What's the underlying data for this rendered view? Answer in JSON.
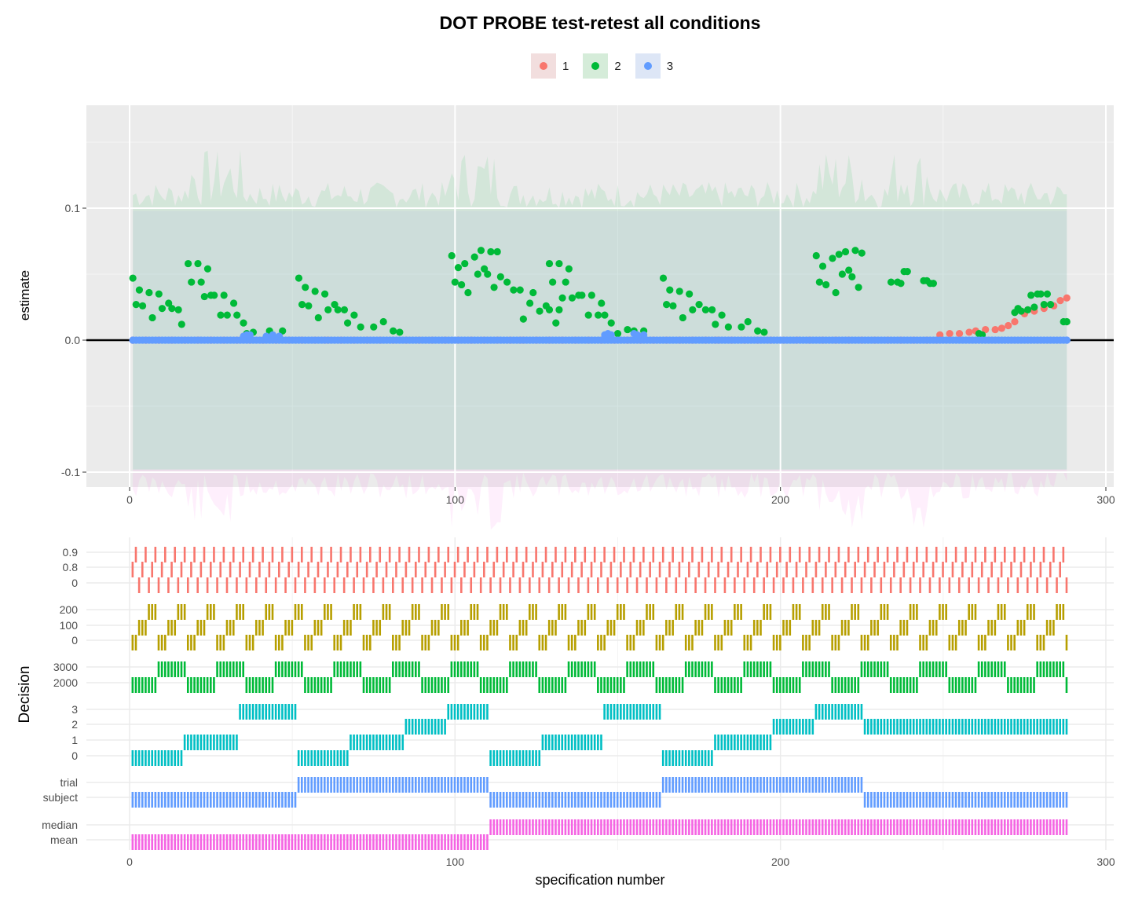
{
  "chart_data": [
    {
      "type": "scatter",
      "title": "DOT PROBE test-retest all conditions",
      "xlabel": "",
      "ylabel": "estimate",
      "xlim": [
        -13,
        304
      ],
      "ylim": [
        -0.113,
        0.178
      ],
      "x_ticks": [
        "0",
        "100",
        "200",
        "300"
      ],
      "y_ticks": [
        "-0.1",
        "0.0",
        "0.1"
      ],
      "y_tick_values": [
        -0.1,
        0.0,
        0.1
      ],
      "grid": true,
      "legend_position": "top",
      "hline_y": 0,
      "confidence_band": [
        -0.098,
        0.098
      ],
      "series": [
        {
          "name": "1",
          "color": "#F8766D",
          "points": [
            [
              1,
              0.0
            ],
            [
              60,
              0.0
            ],
            [
              120,
              0.0
            ],
            [
              180,
              0.0
            ],
            [
              248,
              0.0
            ],
            [
              249,
              0.004
            ],
            [
              252,
              0.005
            ],
            [
              255,
              0.005
            ],
            [
              258,
              0.006
            ],
            [
              260,
              0.007
            ],
            [
              263,
              0.008
            ],
            [
              266,
              0.008
            ],
            [
              268,
              0.009
            ],
            [
              270,
              0.011
            ],
            [
              272,
              0.014
            ],
            [
              275,
              0.02
            ],
            [
              278,
              0.022
            ],
            [
              281,
              0.024
            ],
            [
              284,
              0.026
            ],
            [
              286,
              0.03
            ],
            [
              288,
              0.032
            ]
          ]
        },
        {
          "name": "2",
          "color": "#00BA38",
          "points": [
            [
              1,
              0.047
            ],
            [
              2,
              0.027
            ],
            [
              3,
              0.038
            ],
            [
              4,
              0.026
            ],
            [
              6,
              0.036
            ],
            [
              7,
              0.017
            ],
            [
              9,
              0.035
            ],
            [
              10,
              0.024
            ],
            [
              12,
              0.028
            ],
            [
              13,
              0.024
            ],
            [
              15,
              0.023
            ],
            [
              16,
              0.012
            ],
            [
              18,
              0.058
            ],
            [
              19,
              0.044
            ],
            [
              21,
              0.058
            ],
            [
              22,
              0.044
            ],
            [
              23,
              0.033
            ],
            [
              24,
              0.054
            ],
            [
              25,
              0.034
            ],
            [
              26,
              0.034
            ],
            [
              28,
              0.019
            ],
            [
              29,
              0.034
            ],
            [
              30,
              0.019
            ],
            [
              32,
              0.028
            ],
            [
              33,
              0.019
            ],
            [
              35,
              0.013
            ],
            [
              36,
              0.005
            ],
            [
              38,
              0.006
            ],
            [
              43,
              0.007
            ],
            [
              47,
              0.007
            ],
            [
              52,
              0.047
            ],
            [
              53,
              0.027
            ],
            [
              54,
              0.04
            ],
            [
              55,
              0.026
            ],
            [
              57,
              0.037
            ],
            [
              58,
              0.017
            ],
            [
              60,
              0.035
            ],
            [
              61,
              0.023
            ],
            [
              63,
              0.027
            ],
            [
              64,
              0.023
            ],
            [
              66,
              0.023
            ],
            [
              67,
              0.013
            ],
            [
              69,
              0.019
            ],
            [
              71,
              0.01
            ],
            [
              75,
              0.01
            ],
            [
              78,
              0.014
            ],
            [
              81,
              0.007
            ],
            [
              83,
              0.006
            ],
            [
              99,
              0.064
            ],
            [
              100,
              0.044
            ],
            [
              101,
              0.055
            ],
            [
              102,
              0.042
            ],
            [
              103,
              0.058
            ],
            [
              104,
              0.036
            ],
            [
              106,
              0.063
            ],
            [
              107,
              0.05
            ],
            [
              108,
              0.068
            ],
            [
              109,
              0.054
            ],
            [
              110,
              0.05
            ],
            [
              111,
              0.067
            ],
            [
              112,
              0.04
            ],
            [
              113,
              0.067
            ],
            [
              114,
              0.048
            ],
            [
              116,
              0.044
            ],
            [
              118,
              0.038
            ],
            [
              120,
              0.038
            ],
            [
              121,
              0.016
            ],
            [
              123,
              0.028
            ],
            [
              124,
              0.036
            ],
            [
              126,
              0.022
            ],
            [
              128,
              0.026
            ],
            [
              129,
              0.023
            ],
            [
              131,
              0.013
            ],
            [
              132,
              0.023
            ],
            [
              129,
              0.058
            ],
            [
              130,
              0.044
            ],
            [
              132,
              0.058
            ],
            [
              133,
              0.032
            ],
            [
              134,
              0.044
            ],
            [
              135,
              0.054
            ],
            [
              136,
              0.032
            ],
            [
              138,
              0.034
            ],
            [
              139,
              0.034
            ],
            [
              141,
              0.019
            ],
            [
              142,
              0.034
            ],
            [
              144,
              0.019
            ],
            [
              145,
              0.028
            ],
            [
              146,
              0.019
            ],
            [
              148,
              0.013
            ],
            [
              150,
              0.005
            ],
            [
              153,
              0.008
            ],
            [
              155,
              0.007
            ],
            [
              158,
              0.007
            ],
            [
              164,
              0.047
            ],
            [
              165,
              0.027
            ],
            [
              166,
              0.038
            ],
            [
              167,
              0.026
            ],
            [
              169,
              0.037
            ],
            [
              170,
              0.017
            ],
            [
              172,
              0.035
            ],
            [
              173,
              0.023
            ],
            [
              175,
              0.027
            ],
            [
              177,
              0.023
            ],
            [
              179,
              0.023
            ],
            [
              180,
              0.012
            ],
            [
              182,
              0.019
            ],
            [
              184,
              0.01
            ],
            [
              188,
              0.01
            ],
            [
              190,
              0.014
            ],
            [
              193,
              0.007
            ],
            [
              195,
              0.006
            ],
            [
              211,
              0.064
            ],
            [
              212,
              0.044
            ],
            [
              213,
              0.056
            ],
            [
              214,
              0.042
            ],
            [
              216,
              0.062
            ],
            [
              217,
              0.036
            ],
            [
              218,
              0.065
            ],
            [
              219,
              0.05
            ],
            [
              220,
              0.067
            ],
            [
              221,
              0.053
            ],
            [
              222,
              0.048
            ],
            [
              223,
              0.068
            ],
            [
              224,
              0.04
            ],
            [
              225,
              0.066
            ],
            [
              234,
              0.044
            ],
            [
              236,
              0.044
            ],
            [
              237,
              0.043
            ],
            [
              238,
              0.052
            ],
            [
              239,
              0.052
            ],
            [
              244,
              0.045
            ],
            [
              245,
              0.045
            ],
            [
              246,
              0.043
            ],
            [
              247,
              0.043
            ],
            [
              261,
              0.005
            ],
            [
              262,
              0.004
            ],
            [
              272,
              0.021
            ],
            [
              273,
              0.024
            ],
            [
              274,
              0.022
            ],
            [
              276,
              0.023
            ],
            [
              277,
              0.034
            ],
            [
              278,
              0.025
            ],
            [
              279,
              0.035
            ],
            [
              280,
              0.035
            ],
            [
              281,
              0.027
            ],
            [
              282,
              0.035
            ],
            [
              283,
              0.027
            ],
            [
              287,
              0.014
            ],
            [
              288,
              0.014
            ]
          ]
        },
        {
          "name": "3",
          "color": "#619CFF",
          "points": [
            [
              1,
              0.0
            ],
            [
              35,
              0.003
            ],
            [
              36,
              0.004
            ],
            [
              37,
              0.004
            ],
            [
              42,
              0.003
            ],
            [
              44,
              0.004
            ],
            [
              46,
              0.003
            ],
            [
              146,
              0.004
            ],
            [
              147,
              0.005
            ],
            [
              148,
              0.004
            ],
            [
              155,
              0.005
            ],
            [
              156,
              0.004
            ],
            [
              158,
              0.004
            ],
            [
              288,
              0.0
            ]
          ]
        }
      ]
    },
    {
      "type": "table",
      "title": "",
      "xlabel": "specification number",
      "ylabel": "Decision",
      "x_ticks": [
        "0",
        "100",
        "200",
        "300"
      ],
      "panels": [
        {
          "color": "#F8766D",
          "levels": [
            "0",
            "0.8",
            "0.9"
          ]
        },
        {
          "color": "#B79F00",
          "levels": [
            "0",
            "100",
            "200"
          ]
        },
        {
          "color": "#00BA38",
          "levels": [
            "2000",
            "3000"
          ]
        },
        {
          "color": "#00BFC4",
          "levels": [
            "0",
            "1",
            "2",
            "3"
          ]
        },
        {
          "color": "#619CFF",
          "levels": [
            "subject",
            "trial"
          ]
        },
        {
          "color": "#F564E3",
          "levels": [
            "mean",
            "median"
          ]
        }
      ]
    }
  ]
}
